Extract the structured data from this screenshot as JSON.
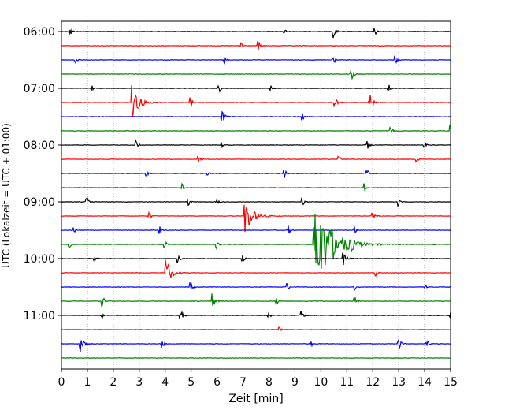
{
  "chart_data": {
    "type": "line",
    "title": "",
    "xlabel": "Zeit  [min]",
    "ylabel": "UTC (Lokalzeit = UTC + 01:00)",
    "xlim": [
      0,
      15
    ],
    "x_ticks": [
      0,
      1,
      2,
      3,
      4,
      5,
      6,
      7,
      8,
      9,
      10,
      11,
      12,
      13,
      14,
      15
    ],
    "y_tick_labels": [
      "06:00",
      "07:00",
      "08:00",
      "09:00",
      "10:00",
      "11:00"
    ],
    "grid": "vertical dotted at each minute",
    "trace_interval_min": 15,
    "first_trace_utc": "06:00",
    "trace_colors": [
      "#000000",
      "#ff0000",
      "#0000ff",
      "#008000"
    ],
    "traces": [
      {
        "start": "06:00",
        "events": [
          [
            0.35,
            0.35
          ],
          [
            8.6,
            0.3
          ],
          [
            10.5,
            0.45
          ],
          [
            12.1,
            0.25
          ]
        ]
      },
      {
        "start": "06:15",
        "events": [
          [
            6.95,
            0.3
          ],
          [
            7.6,
            0.35
          ]
        ]
      },
      {
        "start": "06:30",
        "events": [
          [
            0.55,
            0.35
          ],
          [
            6.3,
            0.3
          ],
          [
            10.5,
            0.3
          ],
          [
            12.9,
            0.3
          ]
        ]
      },
      {
        "start": "06:45",
        "events": [
          [
            11.2,
            0.4
          ]
        ]
      },
      {
        "start": "07:00",
        "events": [
          [
            1.2,
            0.2
          ],
          [
            6.1,
            0.25
          ],
          [
            8.1,
            0.2
          ],
          [
            12.6,
            0.4
          ]
        ]
      },
      {
        "start": "07:15",
        "events": [
          [
            2.75,
            1.3
          ],
          [
            5.0,
            0.35
          ],
          [
            10.55,
            0.4
          ],
          [
            11.9,
            0.55
          ]
        ]
      },
      {
        "start": "07:30",
        "events": [
          [
            6.2,
            0.5
          ],
          [
            9.3,
            0.3
          ]
        ]
      },
      {
        "start": "07:45",
        "events": [
          [
            12.7,
            0.35
          ],
          [
            15.0,
            0.45
          ]
        ]
      },
      {
        "start": "08:00",
        "events": [
          [
            2.9,
            0.35
          ],
          [
            6.2,
            0.25
          ],
          [
            11.8,
            0.35
          ],
          [
            14.0,
            0.3
          ]
        ]
      },
      {
        "start": "08:15",
        "events": [
          [
            5.3,
            0.25
          ],
          [
            10.7,
            0.3
          ],
          [
            13.7,
            0.25
          ]
        ]
      },
      {
        "start": "08:30",
        "events": [
          [
            3.3,
            0.3
          ],
          [
            5.6,
            0.3
          ],
          [
            8.6,
            0.35
          ],
          [
            11.8,
            0.3
          ]
        ]
      },
      {
        "start": "08:45",
        "events": [
          [
            4.65,
            0.3
          ],
          [
            11.7,
            0.3
          ]
        ]
      },
      {
        "start": "09:00",
        "events": [
          [
            1.0,
            0.3
          ],
          [
            4.9,
            0.3
          ],
          [
            6.0,
            0.3
          ],
          [
            9.3,
            0.3
          ],
          [
            13.0,
            0.3
          ]
        ]
      },
      {
        "start": "09:15",
        "events": [
          [
            3.4,
            0.3
          ],
          [
            7.1,
            1.4
          ],
          [
            12.0,
            0.35
          ]
        ]
      },
      {
        "start": "09:30",
        "events": [
          [
            0.5,
            0.25
          ],
          [
            3.8,
            0.25
          ],
          [
            8.8,
            0.3
          ],
          [
            11.3,
            0.3
          ]
        ]
      },
      {
        "start": "09:45",
        "events": [
          [
            0.3,
            0.3
          ],
          [
            4.0,
            0.3
          ],
          [
            6.0,
            0.3
          ],
          [
            9.75,
            3.5
          ],
          [
            11.2,
            0.3
          ]
        ]
      },
      {
        "start": "10:00",
        "events": [
          [
            1.3,
            0.3
          ],
          [
            4.5,
            0.35
          ],
          [
            7.0,
            0.35
          ],
          [
            10.9,
            0.45
          ]
        ]
      },
      {
        "start": "10:15",
        "events": [
          [
            4.05,
            1.0
          ],
          [
            12.1,
            0.35
          ]
        ]
      },
      {
        "start": "10:30",
        "events": [
          [
            5.0,
            0.35
          ],
          [
            8.7,
            0.35
          ],
          [
            11.3,
            0.3
          ],
          [
            14.0,
            0.3
          ]
        ]
      },
      {
        "start": "10:45",
        "events": [
          [
            1.6,
            0.35
          ],
          [
            5.8,
            0.6
          ],
          [
            8.3,
            0.35
          ],
          [
            11.3,
            0.4
          ]
        ]
      },
      {
        "start": "11:00",
        "events": [
          [
            1.6,
            0.3
          ],
          [
            4.6,
            0.45
          ],
          [
            8.0,
            0.3
          ],
          [
            9.2,
            0.5
          ],
          [
            15.0,
            0.3
          ]
        ]
      },
      {
        "start": "11:15",
        "events": [
          [
            8.4,
            0.2
          ]
        ]
      },
      {
        "start": "11:30",
        "events": [
          [
            0.75,
            0.6
          ],
          [
            3.9,
            0.3
          ],
          [
            9.6,
            0.35
          ],
          [
            13.0,
            0.45
          ],
          [
            14.1,
            0.35
          ]
        ]
      },
      {
        "start": "11:45",
        "events": []
      }
    ]
  }
}
